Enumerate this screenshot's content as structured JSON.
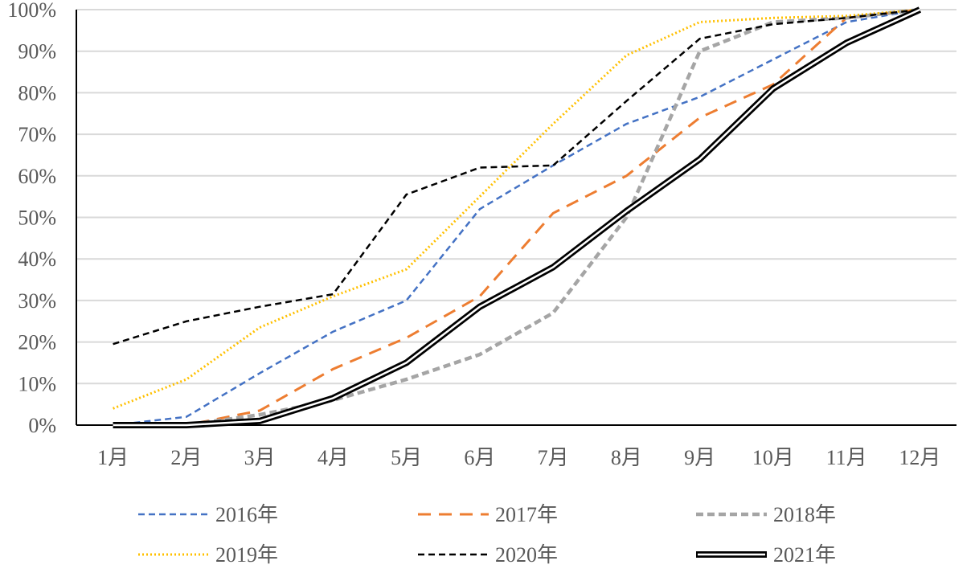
{
  "chart_data": {
    "type": "line",
    "title": "",
    "xlabel": "",
    "ylabel": "",
    "categories": [
      "1月",
      "2月",
      "3月",
      "4月",
      "5月",
      "6月",
      "7月",
      "8月",
      "9月",
      "10月",
      "11月",
      "12月"
    ],
    "y_ticks": [
      "0%",
      "10%",
      "20%",
      "30%",
      "40%",
      "50%",
      "60%",
      "70%",
      "80%",
      "90%",
      "100%"
    ],
    "ylim": [
      0,
      100
    ],
    "y_unit": "%",
    "grid": "horizontal",
    "legend_position": "bottom",
    "series": [
      {
        "name": "2016年",
        "color": "#4472C4",
        "style": "dashed-short",
        "values": [
          0,
          2,
          12.5,
          22.5,
          30,
          52,
          62.5,
          72.5,
          79,
          88,
          97,
          100
        ]
      },
      {
        "name": "2017年",
        "color": "#ED7D31",
        "style": "dashed-long",
        "values": [
          0,
          0,
          3.5,
          13.5,
          21,
          31,
          51,
          60,
          74,
          82,
          98,
          100
        ]
      },
      {
        "name": "2018年",
        "color": "#A5A5A5",
        "style": "dashed-thick",
        "values": [
          0,
          0,
          2.5,
          6,
          11,
          17,
          27,
          50,
          90,
          97,
          98,
          100
        ]
      },
      {
        "name": "2019年",
        "color": "#FFC000",
        "style": "dotted",
        "values": [
          4,
          11,
          23.5,
          31,
          37.5,
          55,
          72.5,
          89,
          97,
          98,
          98.5,
          100
        ]
      },
      {
        "name": "2020年",
        "color": "#000000",
        "style": "dashed-short",
        "values": [
          19.5,
          25,
          28.5,
          31.5,
          55.5,
          62,
          62.5,
          78,
          93,
          96.5,
          98,
          100
        ]
      },
      {
        "name": "2021年",
        "color": "#000000",
        "style": "double",
        "values": [
          0,
          0,
          1,
          6.5,
          15,
          28.5,
          38,
          51.5,
          64,
          81,
          92,
          100
        ]
      }
    ]
  }
}
